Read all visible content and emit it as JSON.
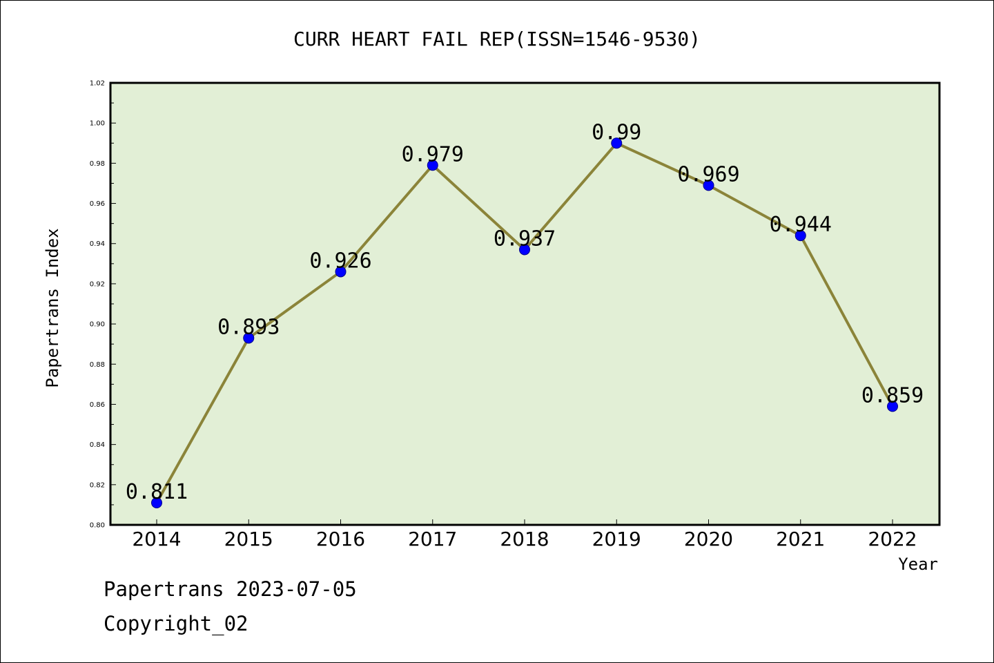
{
  "chart_data": {
    "type": "line",
    "title": "CURR HEART FAIL REP(ISSN=1546-9530)",
    "xlabel": "Year",
    "ylabel": "Papertrans Index",
    "categories": [
      "2014",
      "2015",
      "2016",
      "2017",
      "2018",
      "2019",
      "2020",
      "2021",
      "2022"
    ],
    "values": [
      0.811,
      0.893,
      0.926,
      0.979,
      0.937,
      0.99,
      0.969,
      0.944,
      0.859
    ],
    "data_labels": [
      "0.811",
      "0.893",
      "0.926",
      "0.979",
      "0.937",
      "0.99",
      "0.969",
      "0.944",
      "0.859"
    ],
    "ylim": [
      0.8,
      1.02
    ],
    "yticks": [
      "0.80",
      "0.82",
      "0.84",
      "0.86",
      "0.88",
      "0.90",
      "0.92",
      "0.94",
      "0.96",
      "0.98",
      "1.00",
      "1.02"
    ],
    "grid": false,
    "legend": "none",
    "colors": {
      "plot_background": "#e2efd6",
      "line": "#8b8439",
      "marker": "#0000ff",
      "marker_edge": "#00008b"
    }
  },
  "footer": {
    "date_line": "Papertrans 2023-07-05",
    "copyright_line": "Copyright_02"
  }
}
